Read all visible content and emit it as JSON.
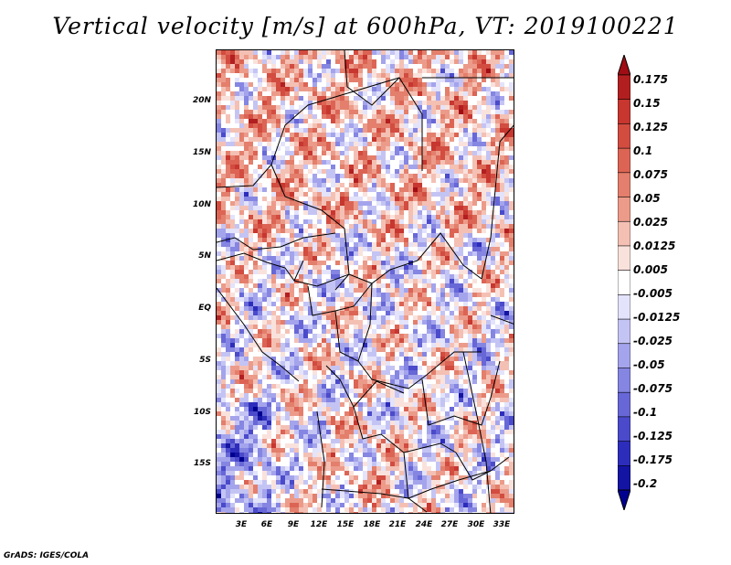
{
  "title": "Vertical velocity [m/s] at 600hPa, VT: 2019100221",
  "footer": "GrADS: IGES/COLA",
  "map": {
    "lat_labels": [
      "20N",
      "15N",
      "10N",
      "5N",
      "EQ",
      "5S",
      "10S",
      "15S"
    ],
    "lon_labels": [
      "3E",
      "6E",
      "9E",
      "12E",
      "15E",
      "18E",
      "21E",
      "24E",
      "27E",
      "30E",
      "33E"
    ]
  },
  "colorbar": {
    "labels": [
      "0.175",
      "0.15",
      "0.125",
      "0.1",
      "0.075",
      "0.05",
      "0.025",
      "0.0125",
      "0.005",
      "-0.005",
      "-0.0125",
      "-0.025",
      "-0.05",
      "-0.075",
      "-0.1",
      "-0.125",
      "-0.175",
      "-0.2"
    ],
    "colors": [
      "#a00d14",
      "#b21f20",
      "#c7362f",
      "#d24c40",
      "#dc6454",
      "#e37f6c",
      "#ec9b8a",
      "#f4c0b4",
      "#fae2dc",
      "#ffffff",
      "#e3e3fb",
      "#c4c4f4",
      "#a4a4ec",
      "#8585e2",
      "#6767d7",
      "#4a4acb",
      "#2d2dbc",
      "#1414a3",
      "#000090"
    ]
  },
  "chart_data": {
    "type": "heatmap",
    "title": "Vertical velocity [m/s] at 600hPa, VT: 2019100221",
    "variable": "Vertical velocity",
    "units": "m/s",
    "level": "600hPa",
    "valid_time": "2019100221",
    "x_ticks": [
      "3E",
      "6E",
      "9E",
      "12E",
      "15E",
      "18E",
      "21E",
      "24E",
      "27E",
      "30E",
      "33E"
    ],
    "y_ticks": [
      "20N",
      "15N",
      "10N",
      "5N",
      "EQ",
      "5S",
      "10S",
      "15S"
    ],
    "xlim": [
      1,
      35
    ],
    "ylim": [
      -20,
      25
    ],
    "color_levels": [
      -0.2,
      -0.175,
      -0.125,
      -0.1,
      -0.075,
      -0.05,
      -0.025,
      -0.0125,
      -0.005,
      0.005,
      0.0125,
      0.025,
      0.05,
      0.075,
      0.1,
      0.125,
      0.15,
      0.175
    ]
  }
}
